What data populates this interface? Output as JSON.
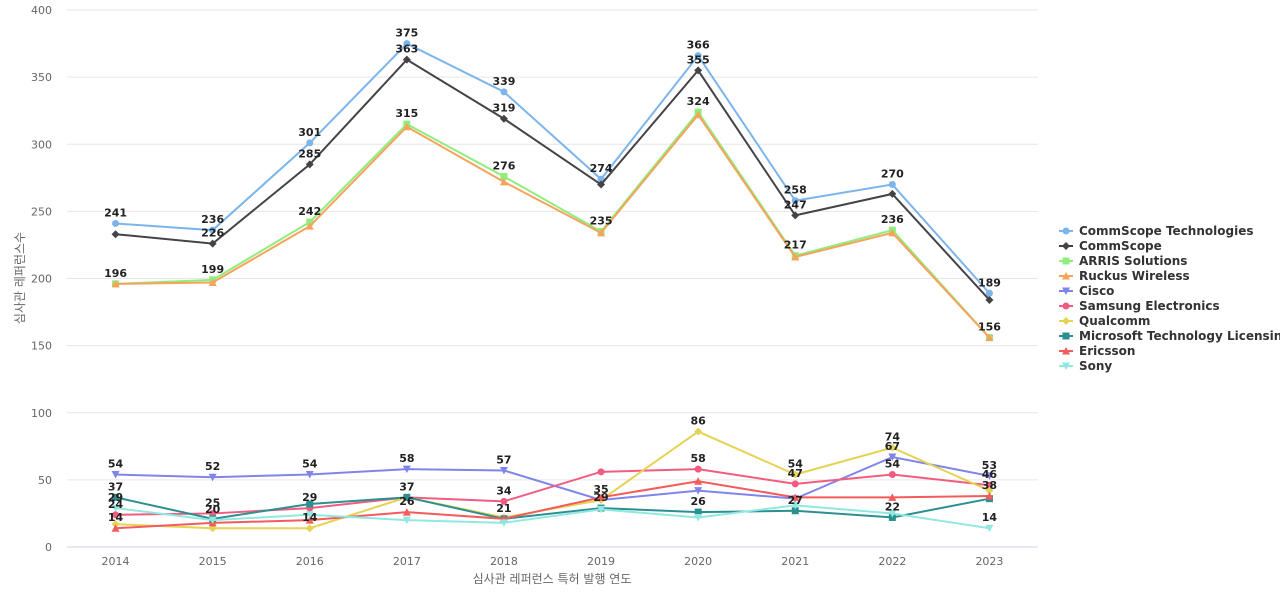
{
  "chart_data": {
    "type": "line",
    "xlabel": "심사관 레퍼런스 특허 발행 연도",
    "ylabel": "심사관 레퍼런스수",
    "ylim": [
      0,
      400
    ],
    "yticks": [
      0,
      50,
      100,
      150,
      200,
      250,
      300,
      350,
      400
    ],
    "grid": true,
    "legend_position": "right",
    "x": [
      "2014",
      "2015",
      "2016",
      "2017",
      "2018",
      "2019",
      "2020",
      "2021",
      "2022",
      "2023"
    ],
    "series": [
      {
        "name": "CommScope Technologies",
        "color": "#7cb5ec",
        "marker": "circle",
        "values": [
          241,
          236,
          301,
          375,
          339,
          274,
          366,
          258,
          270,
          189
        ]
      },
      {
        "name": "CommScope",
        "color": "#434348",
        "marker": "diamond",
        "values": [
          233,
          226,
          285,
          363,
          319,
          270,
          355,
          247,
          263,
          184
        ]
      },
      {
        "name": "ARRIS Solutions",
        "color": "#90ed7d",
        "marker": "square",
        "values": [
          196,
          199,
          242,
          315,
          276,
          235,
          324,
          217,
          236,
          156
        ]
      },
      {
        "name": "Ruckus Wireless",
        "color": "#f7a35c",
        "marker": "triangle",
        "values": [
          196,
          197,
          239,
          313,
          272,
          234,
          322,
          216,
          234,
          156
        ]
      },
      {
        "name": "Cisco",
        "color": "#8085e9",
        "marker": "triangle-down",
        "values": [
          54,
          52,
          54,
          58,
          57,
          35,
          42,
          36,
          67,
          53
        ]
      },
      {
        "name": "Samsung Electronics",
        "color": "#f15c80",
        "marker": "circle",
        "values": [
          24,
          25,
          29,
          37,
          34,
          56,
          58,
          47,
          54,
          46
        ]
      },
      {
        "name": "Qualcomm",
        "color": "#e4d354",
        "marker": "diamond",
        "values": [
          17,
          14,
          14,
          37,
          22,
          35,
          86,
          54,
          74,
          42
        ]
      },
      {
        "name": "Microsoft Technology Licensing",
        "color": "#2b908f",
        "marker": "square",
        "values": [
          37,
          21,
          32,
          37,
          21,
          29,
          26,
          27,
          22,
          36
        ]
      },
      {
        "name": "Ericsson",
        "color": "#f45b5b",
        "marker": "triangle",
        "values": [
          14,
          18,
          20,
          26,
          21,
          37,
          49,
          37,
          37,
          38
        ]
      },
      {
        "name": "Sony",
        "color": "#91e8e1",
        "marker": "triangle-down",
        "values": [
          29,
          20,
          24,
          20,
          18,
          28,
          22,
          31,
          25,
          14
        ]
      }
    ],
    "data_labels": [
      {
        "series": 0,
        "points": [
          0,
          1,
          2,
          3,
          4,
          5,
          6,
          7,
          8,
          9
        ]
      },
      {
        "series": 1,
        "points": [
          1,
          2,
          3,
          4,
          6,
          7
        ]
      },
      {
        "series": 2,
        "points": [
          0,
          1,
          2,
          3,
          4,
          5,
          6,
          7,
          8,
          9
        ]
      },
      {
        "series": 4,
        "points": [
          0,
          1,
          2,
          3,
          4,
          5,
          8,
          9
        ]
      },
      {
        "series": 5,
        "points": [
          0,
          1,
          2,
          3,
          4,
          6,
          7,
          8,
          9
        ]
      },
      {
        "series": 6,
        "points": [
          2,
          6,
          7,
          8
        ]
      },
      {
        "series": 7,
        "points": [
          0,
          5,
          6,
          7,
          8
        ]
      },
      {
        "series": 8,
        "points": [
          0,
          3,
          4,
          9
        ]
      },
      {
        "series": 9,
        "points": [
          0,
          1,
          9
        ]
      }
    ]
  }
}
